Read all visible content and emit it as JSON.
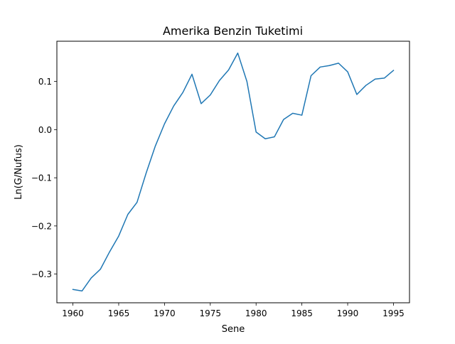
{
  "chart_data": {
    "type": "line",
    "title": "Amerika Benzin Tuketimi",
    "xlabel": "Sene",
    "ylabel": "Ln(G/Nufus)",
    "xlim": [
      1958.25,
      1996.75
    ],
    "ylim": [
      -0.3596,
      0.1836
    ],
    "grid": false,
    "line_color": "#1f77b4",
    "x_ticks": [
      {
        "value": 1960,
        "label": "1960"
      },
      {
        "value": 1965,
        "label": "1965"
      },
      {
        "value": 1970,
        "label": "1970"
      },
      {
        "value": 1975,
        "label": "1975"
      },
      {
        "value": 1980,
        "label": "1980"
      },
      {
        "value": 1985,
        "label": "1985"
      },
      {
        "value": 1990,
        "label": "1990"
      },
      {
        "value": 1995,
        "label": "1995"
      }
    ],
    "y_ticks": [
      {
        "value": 0.1,
        "label": "0.1"
      },
      {
        "value": 0.0,
        "label": "0.0"
      },
      {
        "value": -0.1,
        "label": "−0.1"
      },
      {
        "value": -0.2,
        "label": "−0.2"
      },
      {
        "value": -0.3,
        "label": "−0.3"
      }
    ],
    "x": [
      1960,
      1961,
      1962,
      1963,
      1964,
      1965,
      1966,
      1967,
      1968,
      1969,
      1970,
      1971,
      1972,
      1973,
      1974,
      1975,
      1976,
      1977,
      1978,
      1979,
      1980,
      1981,
      1982,
      1983,
      1984,
      1985,
      1986,
      1987,
      1988,
      1989,
      1990,
      1991,
      1992,
      1993,
      1994,
      1995
    ],
    "series": [
      {
        "values": [
          -0.332,
          -0.335,
          -0.308,
          -0.29,
          -0.254,
          -0.221,
          -0.176,
          -0.151,
          -0.09,
          -0.034,
          0.012,
          0.049,
          0.077,
          0.115,
          0.054,
          0.072,
          0.102,
          0.124,
          0.159,
          0.1,
          -0.005,
          -0.019,
          -0.015,
          0.021,
          0.034,
          0.03,
          0.112,
          0.13,
          0.133,
          0.138,
          0.12,
          0.073,
          0.092,
          0.105,
          0.107,
          0.123
        ]
      }
    ]
  }
}
